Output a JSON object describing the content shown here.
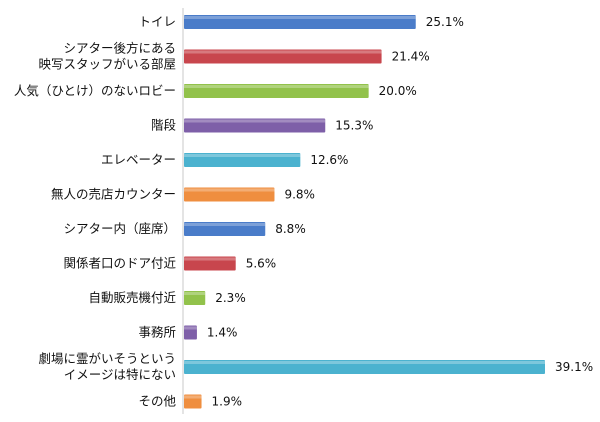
{
  "chart_data": {
    "type": "bar",
    "orientation": "horizontal",
    "categories": [
      [
        "トイレ"
      ],
      [
        "シアター後方にある",
        "映写スタッフがいる部屋"
      ],
      [
        "人気（ひとけ）のないロビー"
      ],
      [
        "階段"
      ],
      [
        "エレベーター"
      ],
      [
        "無人の売店カウンター"
      ],
      [
        "シアター内（座席）"
      ],
      [
        "関係者口のドア付近"
      ],
      [
        "自動販売機付近"
      ],
      [
        "事務所"
      ],
      [
        "劇場に霊がいそうという",
        "イメージは特にない"
      ],
      [
        "その他"
      ]
    ],
    "values": [
      25.1,
      21.4,
      20.0,
      15.3,
      12.6,
      9.8,
      8.8,
      5.6,
      2.3,
      1.4,
      39.1,
      1.9
    ],
    "value_labels": [
      "25.1%",
      "21.4%",
      "20.0%",
      "15.3%",
      "12.6%",
      "9.8%",
      "8.8%",
      "5.6%",
      "2.3%",
      "1.4%",
      "39.1%",
      "1.9%"
    ],
    "colors": [
      "#4a7cc9",
      "#c8464d",
      "#92c24b",
      "#7e5fa8",
      "#4bb2cf",
      "#ef8e3f",
      "#4a7cc9",
      "#c8464d",
      "#92c24b",
      "#7e5fa8",
      "#4bb2cf",
      "#ef8e3f"
    ],
    "xlim": [
      0,
      40
    ],
    "grid": false,
    "legend": "none",
    "title": "",
    "xlabel": "",
    "ylabel": ""
  }
}
